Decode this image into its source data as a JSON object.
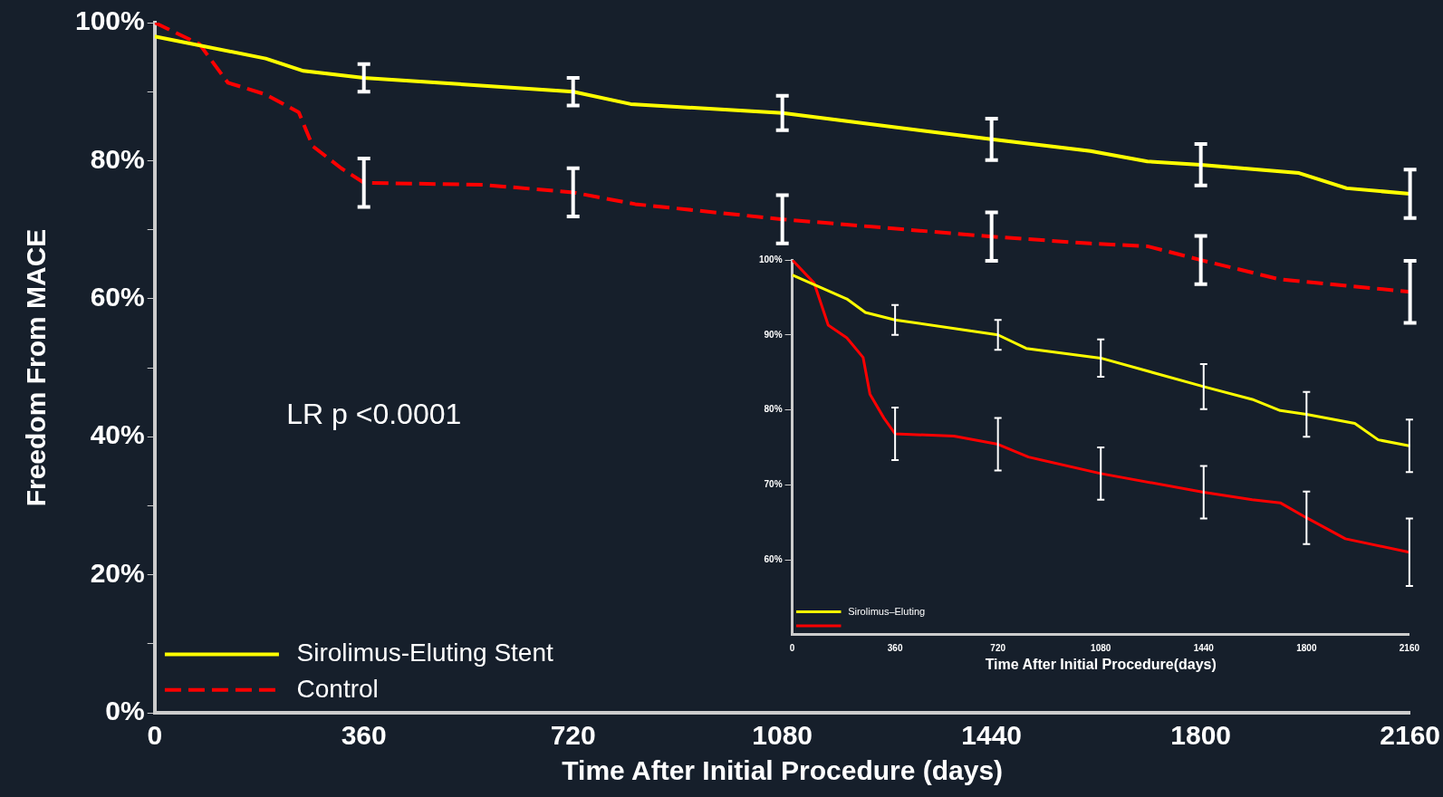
{
  "chart_data": [
    {
      "type": "line",
      "xlabel": "Time After Initial Procedure (days)",
      "ylabel": "Freedom From MACE",
      "annotations": [
        "LR p <0.0001"
      ],
      "xlim": [
        0,
        2160
      ],
      "xticks": [
        0,
        360,
        720,
        1080,
        1440,
        1800,
        2160
      ],
      "ylim": [
        0,
        100
      ],
      "yticks": [
        {
          "value": 0,
          "label": "0%"
        },
        {
          "value": 10,
          "label": null
        },
        {
          "value": 20,
          "label": "20%"
        },
        {
          "value": 30,
          "label": null
        },
        {
          "value": 40,
          "label": "40%"
        },
        {
          "value": 50,
          "label": null
        },
        {
          "value": 60,
          "label": "60%"
        },
        {
          "value": 70,
          "label": null
        },
        {
          "value": 80,
          "label": "80%"
        },
        {
          "value": 90,
          "label": null
        },
        {
          "value": 100,
          "label": "100%"
        }
      ],
      "grid": false,
      "legend": "bottom left",
      "marker": "none",
      "series": [
        {
          "name": "Sirolimus-Eluting Stent",
          "color": "#ffff00",
          "line_style": "solid",
          "x": [
            0,
            191,
            256,
            360,
            720,
            819,
            1080,
            1440,
            1610,
            1708,
            1800,
            1969,
            2051,
            2160
          ],
          "values": [
            98,
            94.8,
            93,
            92,
            90,
            88.2,
            86.9,
            83.1,
            81.4,
            79.9,
            79.4,
            78.2,
            76,
            75.2
          ],
          "errors": [
            null,
            null,
            null,
            2,
            2,
            null,
            2.5,
            3,
            null,
            null,
            3,
            null,
            null,
            3.5
          ]
        },
        {
          "name": "Control",
          "color": "#ff0000",
          "line_style": "dashed",
          "x": [
            0,
            77,
            126,
            191,
            248,
            272,
            321,
            360,
            566,
            720,
            827,
            1080,
            1440,
            1610,
            1708,
            1800,
            1936,
            2160
          ],
          "values": [
            100,
            96.9,
            91.3,
            89.6,
            87,
            82.1,
            78.9,
            76.8,
            76.5,
            75.4,
            73.7,
            71.5,
            69,
            68,
            67.6,
            65.6,
            62.8,
            61
          ],
          "errors": [
            null,
            null,
            null,
            null,
            null,
            null,
            null,
            3.5,
            null,
            3.5,
            null,
            3.5,
            3.5,
            null,
            null,
            3.5,
            null,
            4.5
          ]
        }
      ]
    },
    {
      "type": "line",
      "xlabel": "Time After Initial Procedure(days)",
      "xlim": [
        0,
        2160
      ],
      "xticks": [
        0,
        360,
        720,
        1080,
        1440,
        1800,
        2160
      ],
      "ylim": [
        50,
        100
      ],
      "yticks": [
        {
          "value": 60,
          "label": "60%"
        },
        {
          "value": 70,
          "label": "70%"
        },
        {
          "value": 80,
          "label": "80%"
        },
        {
          "value": 90,
          "label": "90%"
        },
        {
          "value": 100,
          "label": "100%"
        }
      ],
      "grid": false,
      "legend": "bottom left",
      "marker": "none",
      "series": [
        {
          "name": "Sirolimus–Eluting",
          "color": "#ffff00",
          "line_style": "solid",
          "x": [
            0,
            191,
            256,
            360,
            720,
            819,
            1080,
            1440,
            1610,
            1708,
            1800,
            1969,
            2051,
            2160
          ],
          "values": [
            98,
            94.8,
            93,
            92,
            90,
            88.2,
            86.9,
            83.1,
            81.4,
            79.9,
            79.4,
            78.2,
            76,
            75.2
          ],
          "errors": [
            null,
            null,
            null,
            2,
            2,
            null,
            2.5,
            3,
            null,
            null,
            3,
            null,
            null,
            3.5
          ]
        },
        {
          "color": "#ff0000",
          "line_style": "solid",
          "x": [
            0,
            77,
            126,
            191,
            248,
            272,
            321,
            360,
            566,
            720,
            827,
            1080,
            1440,
            1610,
            1708,
            1800,
            1936,
            2160
          ],
          "values": [
            100,
            96.9,
            91.3,
            89.6,
            87,
            82.1,
            78.9,
            76.8,
            76.5,
            75.4,
            73.7,
            71.5,
            69,
            68,
            67.6,
            65.6,
            62.8,
            61
          ],
          "errors": [
            null,
            null,
            null,
            null,
            null,
            null,
            null,
            3.5,
            null,
            3.5,
            null,
            3.5,
            3.5,
            null,
            null,
            3.5,
            null,
            4.5
          ]
        }
      ]
    }
  ]
}
